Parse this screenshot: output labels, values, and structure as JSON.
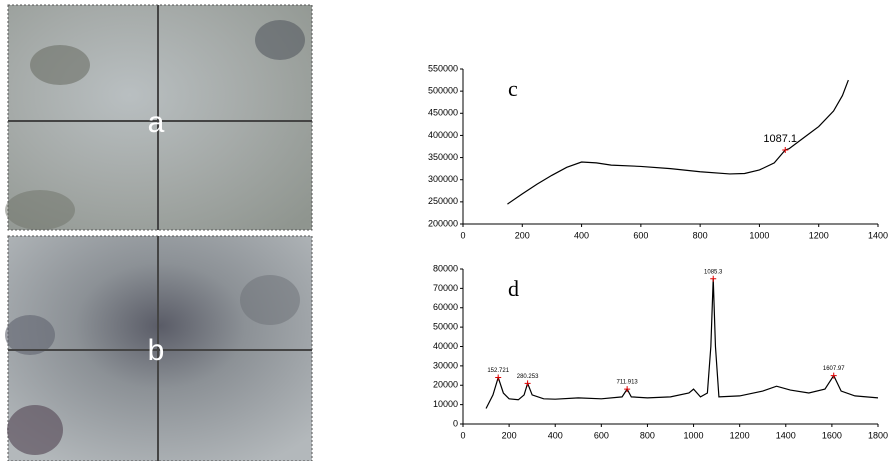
{
  "images": [
    {
      "label": "a"
    },
    {
      "label": "b"
    }
  ],
  "chart_data": [
    {
      "type": "line",
      "label": "c",
      "color": "#000000",
      "x": [
        150,
        200,
        250,
        300,
        350,
        400,
        450,
        500,
        600,
        700,
        800,
        900,
        950,
        1000,
        1050,
        1087.1,
        1100,
        1150,
        1200,
        1250,
        1280,
        1300
      ],
      "values": [
        245000,
        268000,
        290000,
        310000,
        328000,
        340000,
        338000,
        333000,
        330000,
        325000,
        318000,
        313000,
        314000,
        322000,
        338000,
        367000,
        370000,
        395000,
        420000,
        455000,
        490000,
        525000
      ],
      "xlim": [
        0,
        1400
      ],
      "xticks": [
        0,
        200,
        400,
        600,
        800,
        1000,
        1200,
        1400
      ],
      "ylim": [
        200000,
        550000
      ],
      "yticks": [
        200000,
        250000,
        300000,
        350000,
        400000,
        450000,
        500000,
        550000
      ],
      "peaks": {
        "color": "#e00000",
        "x": [
          1087.1
        ],
        "y": [
          367000
        ]
      }
    },
    {
      "type": "line",
      "label": "d",
      "color": "#000000",
      "x": [
        100,
        130,
        152.721,
        175,
        200,
        240,
        265,
        280.253,
        300,
        350,
        400,
        500,
        600,
        690,
        711.913,
        730,
        800,
        900,
        980,
        1000,
        1030,
        1060,
        1075,
        1085.3,
        1095,
        1110,
        1200,
        1300,
        1360,
        1420,
        1500,
        1570,
        1607.97,
        1640,
        1700,
        1800
      ],
      "values": [
        8000,
        15000,
        24000,
        16000,
        13000,
        12500,
        15000,
        21000,
        15000,
        13000,
        12800,
        13500,
        13000,
        14000,
        18000,
        14000,
        13500,
        14000,
        16000,
        18000,
        14000,
        16000,
        40000,
        75000,
        40000,
        14000,
        14500,
        17000,
        19500,
        17500,
        16000,
        18000,
        25000,
        17000,
        14500,
        13500
      ],
      "xlim": [
        0,
        1800
      ],
      "xticks": [
        0,
        200,
        400,
        600,
        800,
        1000,
        1200,
        1400,
        1600,
        1800
      ],
      "ylim": [
        0,
        80000
      ],
      "yticks": [
        0,
        10000,
        20000,
        30000,
        40000,
        50000,
        60000,
        70000,
        80000
      ],
      "peaks": {
        "color": "#e00000",
        "x": [
          152.721,
          280.253,
          711.913,
          1085.3,
          1607.97
        ],
        "y": [
          24000,
          21000,
          18000,
          75000,
          25000
        ]
      }
    }
  ]
}
